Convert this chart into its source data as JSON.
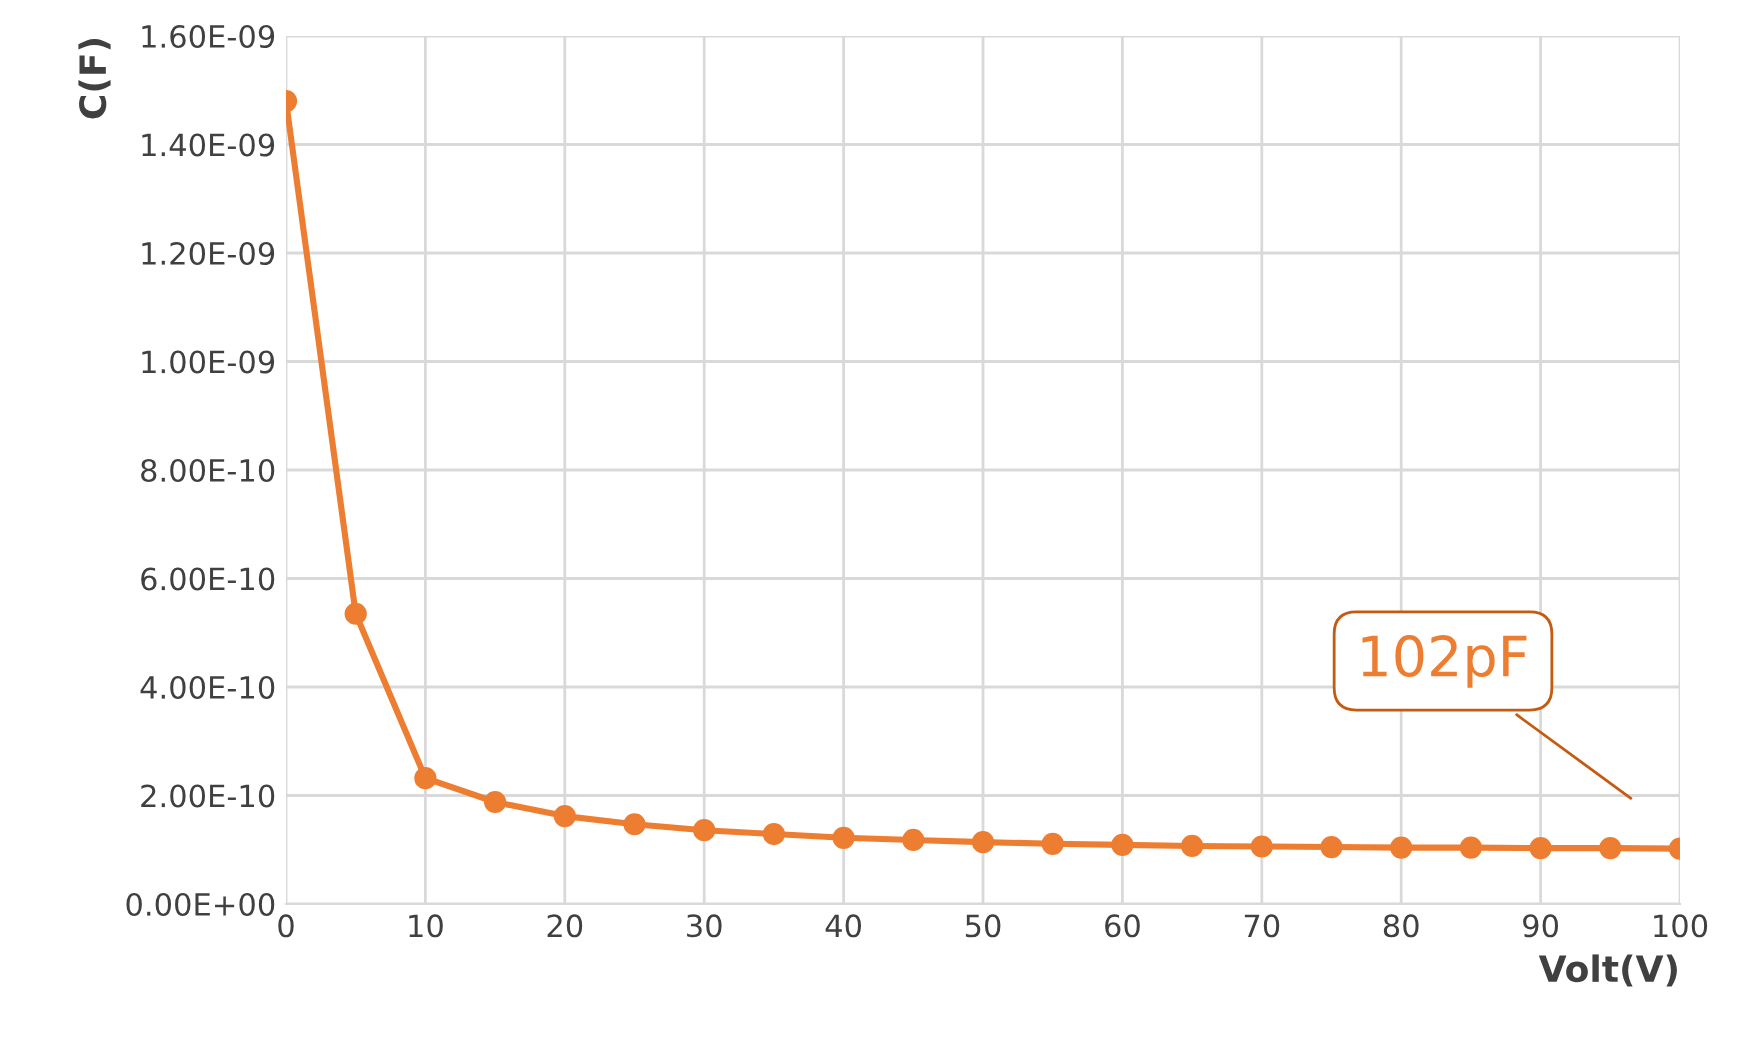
{
  "chart_data": {
    "type": "line",
    "xlabel": "Volt(V)",
    "ylabel": "C(F)",
    "x": [
      0,
      5,
      10,
      15,
      20,
      25,
      30,
      35,
      40,
      45,
      50,
      55,
      60,
      65,
      70,
      75,
      80,
      85,
      90,
      95,
      100
    ],
    "series": [
      {
        "color": "#ed7d31",
        "values": [
          1.48e-09,
          5.35e-10,
          2.32e-10,
          1.88e-10,
          1.62e-10,
          1.47e-10,
          1.36e-10,
          1.29e-10,
          1.22e-10,
          1.18e-10,
          1.14e-10,
          1.11e-10,
          1.09e-10,
          1.07e-10,
          1.06e-10,
          1.05e-10,
          1.04e-10,
          1.04e-10,
          1.03e-10,
          1.03e-10,
          1.02e-10
        ]
      }
    ],
    "xlim": [
      0,
      100
    ],
    "xticks": [
      0,
      10,
      20,
      30,
      40,
      50,
      60,
      70,
      80,
      90,
      100
    ],
    "ylim": [
      0,
      1.6e-09
    ],
    "yticks": [
      {
        "value": 0,
        "label": "0.00E+00"
      },
      {
        "value": 2e-10,
        "label": "2.00E-10"
      },
      {
        "value": 4e-10,
        "label": "4.00E-10"
      },
      {
        "value": 6e-10,
        "label": "6.00E-10"
      },
      {
        "value": 8e-10,
        "label": "8.00E-10"
      },
      {
        "value": 1e-09,
        "label": "1.00E-09"
      },
      {
        "value": 1.2e-09,
        "label": "1.20E-09"
      },
      {
        "value": 1.4e-09,
        "label": "1.40E-09"
      },
      {
        "value": 1.6e-09,
        "label": "1.60E-09"
      }
    ],
    "grid": true,
    "marker": "circle",
    "line_style": "solid",
    "legend": false,
    "annotations": [
      "102pF"
    ]
  }
}
